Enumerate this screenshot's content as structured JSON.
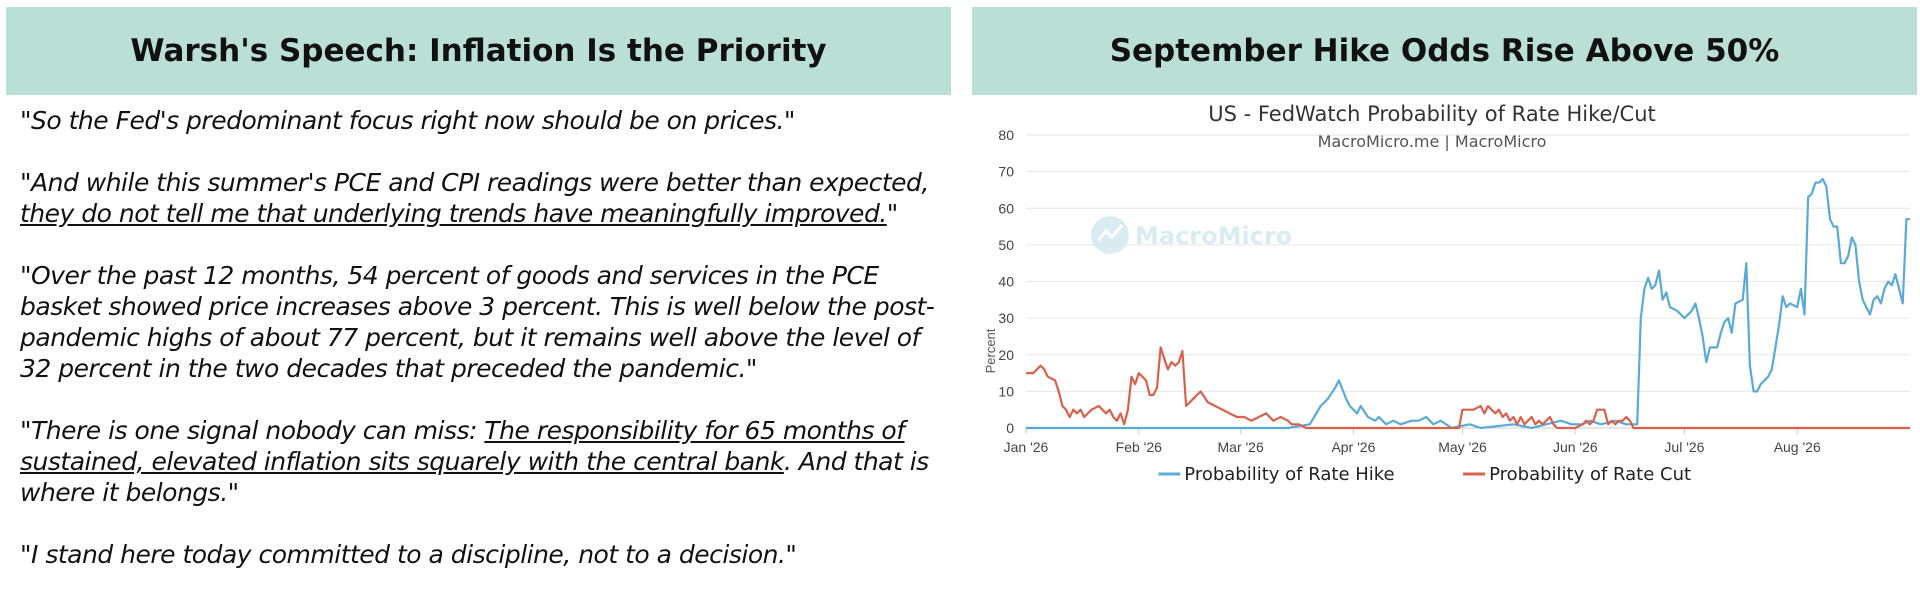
{
  "left": {
    "title": "Warsh's Speech: Inflation Is the Priority",
    "quotes": [
      {
        "parts": [
          {
            "text": "\"So the Fed's predominant focus right now should be on prices.\"",
            "u": false
          }
        ]
      },
      {
        "parts": [
          {
            "text": "\"And while this summer's PCE and CPI readings were better than expected, ",
            "u": false
          },
          {
            "text": "they do not tell me that underlying trends have meaningfully improved.",
            "u": true
          },
          {
            "text": "\"",
            "u": false
          }
        ]
      },
      {
        "parts": [
          {
            "text": "\"Over the past 12 months, 54 percent of goods and services in the PCE basket showed price increases above 3 percent. This is well below the post-pandemic highs of about 77 percent, but it remains well above the level of 32 percent in the two decades that preceded the pandemic.\"",
            "u": false
          }
        ]
      },
      {
        "parts": [
          {
            "text": "\"There is one signal nobody can miss: ",
            "u": false
          },
          {
            "text": "The responsibility for 65 months of sustained, elevated inflation sits squarely with the central bank",
            "u": true
          },
          {
            "text": ". And that is where it belongs.\"",
            "u": false
          }
        ]
      },
      {
        "parts": [
          {
            "text": "\"I stand here today committed to a discipline, not to a decision.\"",
            "u": false
          }
        ]
      }
    ]
  },
  "right": {
    "title": "September Hike Odds Rise Above 50%",
    "watermark": "MacroMicro"
  },
  "colors": {
    "header_bg": "#badfd4",
    "hike": "#5aaad5",
    "cut": "#d9614c",
    "grid": "#e6e6e6"
  },
  "chart_data": {
    "type": "line",
    "title": "US - FedWatch Probability of Rate Hike/Cut",
    "subtitle": "MacroMicro.me | MacroMicro",
    "ylabel": "Percent",
    "ylim": [
      0,
      80
    ],
    "yticks": [
      0,
      10,
      20,
      30,
      40,
      50,
      60,
      70,
      80
    ],
    "xlim": [
      "2026-01-01",
      "2026-09-01"
    ],
    "xticks": [
      {
        "date": "2026-01-01",
        "label": "Jan '26"
      },
      {
        "date": "2026-02-01",
        "label": "Feb '26"
      },
      {
        "date": "2026-03-01",
        "label": "Mar '26"
      },
      {
        "date": "2026-04-01",
        "label": "Apr '26"
      },
      {
        "date": "2026-05-01",
        "label": "May '26"
      },
      {
        "date": "2026-06-01",
        "label": "Jun '26"
      },
      {
        "date": "2026-07-01",
        "label": "Jul '26"
      },
      {
        "date": "2026-08-01",
        "label": "Aug '26"
      }
    ],
    "grid": true,
    "legend_position": "bottom",
    "series": [
      {
        "name": "Probability of Rate Hike",
        "color": "#5aaad5",
        "points": [
          [
            "2026-01-01",
            0
          ],
          [
            "2026-03-14",
            0
          ],
          [
            "2026-03-20",
            1
          ],
          [
            "2026-03-23",
            6
          ],
          [
            "2026-03-25",
            8
          ],
          [
            "2026-03-27",
            11
          ],
          [
            "2026-03-28",
            13
          ],
          [
            "2026-03-30",
            8
          ],
          [
            "2026-03-31",
            6
          ],
          [
            "2026-04-02",
            4
          ],
          [
            "2026-04-03",
            6
          ],
          [
            "2026-04-05",
            3
          ],
          [
            "2026-04-07",
            2
          ],
          [
            "2026-04-08",
            3
          ],
          [
            "2026-04-10",
            1
          ],
          [
            "2026-04-12",
            2
          ],
          [
            "2026-04-14",
            1
          ],
          [
            "2026-04-17",
            2
          ],
          [
            "2026-04-19",
            2
          ],
          [
            "2026-04-21",
            3
          ],
          [
            "2026-04-23",
            1
          ],
          [
            "2026-04-25",
            2
          ],
          [
            "2026-04-28",
            0
          ],
          [
            "2026-05-03",
            1
          ],
          [
            "2026-05-06",
            0
          ],
          [
            "2026-05-15",
            1
          ],
          [
            "2026-05-20",
            0
          ],
          [
            "2026-05-24",
            1
          ],
          [
            "2026-05-28",
            2
          ],
          [
            "2026-05-31",
            1
          ],
          [
            "2026-06-03",
            1
          ],
          [
            "2026-06-05",
            2
          ],
          [
            "2026-06-08",
            1
          ],
          [
            "2026-06-12",
            2
          ],
          [
            "2026-06-15",
            1
          ],
          [
            "2026-06-18",
            1
          ],
          [
            "2026-06-19",
            30
          ],
          [
            "2026-06-20",
            38
          ],
          [
            "2026-06-21",
            41
          ],
          [
            "2026-06-22",
            38
          ],
          [
            "2026-06-23",
            39
          ],
          [
            "2026-06-24",
            43
          ],
          [
            "2026-06-25",
            35
          ],
          [
            "2026-06-26",
            37
          ],
          [
            "2026-06-27",
            33
          ],
          [
            "2026-06-29",
            32
          ],
          [
            "2026-07-01",
            30
          ],
          [
            "2026-07-03",
            32
          ],
          [
            "2026-07-04",
            34
          ],
          [
            "2026-07-05",
            30
          ],
          [
            "2026-07-06",
            25
          ],
          [
            "2026-07-07",
            18
          ],
          [
            "2026-07-08",
            22
          ],
          [
            "2026-07-10",
            22
          ],
          [
            "2026-07-11",
            26
          ],
          [
            "2026-07-12",
            29
          ],
          [
            "2026-07-13",
            30
          ],
          [
            "2026-07-14",
            26
          ],
          [
            "2026-07-15",
            34
          ],
          [
            "2026-07-17",
            35
          ],
          [
            "2026-07-18",
            45
          ],
          [
            "2026-07-19",
            17
          ],
          [
            "2026-07-20",
            10
          ],
          [
            "2026-07-21",
            10
          ],
          [
            "2026-07-22",
            12
          ],
          [
            "2026-07-24",
            14
          ],
          [
            "2026-07-25",
            16
          ],
          [
            "2026-07-27",
            28
          ],
          [
            "2026-07-28",
            36
          ],
          [
            "2026-07-29",
            33
          ],
          [
            "2026-07-30",
            34
          ],
          [
            "2026-08-01",
            33
          ],
          [
            "2026-08-02",
            38
          ],
          [
            "2026-08-03",
            31
          ],
          [
            "2026-08-04",
            63
          ],
          [
            "2026-08-05",
            64
          ],
          [
            "2026-08-06",
            67
          ],
          [
            "2026-08-07",
            67
          ],
          [
            "2026-08-08",
            68
          ],
          [
            "2026-08-09",
            66
          ],
          [
            "2026-08-10",
            57
          ],
          [
            "2026-08-11",
            55
          ],
          [
            "2026-08-12",
            55
          ],
          [
            "2026-08-13",
            45
          ],
          [
            "2026-08-14",
            45
          ],
          [
            "2026-08-15",
            47
          ],
          [
            "2026-08-16",
            52
          ],
          [
            "2026-08-17",
            50
          ],
          [
            "2026-08-18",
            40
          ],
          [
            "2026-08-19",
            35
          ],
          [
            "2026-08-20",
            33
          ],
          [
            "2026-08-21",
            31
          ],
          [
            "2026-08-22",
            35
          ],
          [
            "2026-08-23",
            36
          ],
          [
            "2026-08-24",
            34
          ],
          [
            "2026-08-25",
            38
          ],
          [
            "2026-08-26",
            40
          ],
          [
            "2026-08-27",
            39
          ],
          [
            "2026-08-28",
            42
          ],
          [
            "2026-08-29",
            38
          ],
          [
            "2026-08-30",
            34
          ],
          [
            "2026-08-31",
            57
          ],
          [
            "2026-09-01",
            57
          ]
        ]
      },
      {
        "name": "Probability of Rate Cut",
        "color": "#d9614c",
        "points": [
          [
            "2026-01-01",
            15
          ],
          [
            "2026-01-03",
            15
          ],
          [
            "2026-01-04",
            16
          ],
          [
            "2026-01-05",
            17
          ],
          [
            "2026-01-06",
            16
          ],
          [
            "2026-01-07",
            14
          ],
          [
            "2026-01-09",
            13
          ],
          [
            "2026-01-10",
            10
          ],
          [
            "2026-01-11",
            6
          ],
          [
            "2026-01-12",
            5
          ],
          [
            "2026-01-13",
            3
          ],
          [
            "2026-01-14",
            5
          ],
          [
            "2026-01-15",
            4
          ],
          [
            "2026-01-16",
            5
          ],
          [
            "2026-01-17",
            3
          ],
          [
            "2026-01-18",
            4
          ],
          [
            "2026-01-19",
            5
          ],
          [
            "2026-01-21",
            6
          ],
          [
            "2026-01-22",
            5
          ],
          [
            "2026-01-23",
            4
          ],
          [
            "2026-01-24",
            5
          ],
          [
            "2026-01-25",
            3
          ],
          [
            "2026-01-26",
            2
          ],
          [
            "2026-01-27",
            4
          ],
          [
            "2026-01-28",
            1
          ],
          [
            "2026-01-29",
            5
          ],
          [
            "2026-01-30",
            14
          ],
          [
            "2026-01-31",
            12
          ],
          [
            "2026-02-01",
            15
          ],
          [
            "2026-02-03",
            13
          ],
          [
            "2026-02-04",
            9
          ],
          [
            "2026-02-05",
            9
          ],
          [
            "2026-02-06",
            11
          ],
          [
            "2026-02-07",
            22
          ],
          [
            "2026-02-08",
            19
          ],
          [
            "2026-02-09",
            16
          ],
          [
            "2026-02-10",
            18
          ],
          [
            "2026-02-11",
            17
          ],
          [
            "2026-02-12",
            18
          ],
          [
            "2026-02-13",
            21
          ],
          [
            "2026-02-14",
            6
          ],
          [
            "2026-02-15",
            7
          ],
          [
            "2026-02-16",
            8
          ],
          [
            "2026-02-17",
            9
          ],
          [
            "2026-02-18",
            10
          ],
          [
            "2026-02-20",
            7
          ],
          [
            "2026-02-22",
            6
          ],
          [
            "2026-02-24",
            5
          ],
          [
            "2026-02-26",
            4
          ],
          [
            "2026-02-28",
            3
          ],
          [
            "2026-03-02",
            3
          ],
          [
            "2026-03-04",
            2
          ],
          [
            "2026-03-06",
            3
          ],
          [
            "2026-03-08",
            4
          ],
          [
            "2026-03-10",
            2
          ],
          [
            "2026-03-12",
            3
          ],
          [
            "2026-03-14",
            2
          ],
          [
            "2026-03-15",
            1
          ],
          [
            "2026-03-17",
            1
          ],
          [
            "2026-03-19",
            0
          ],
          [
            "2026-04-30",
            0
          ],
          [
            "2026-05-01",
            5
          ],
          [
            "2026-05-04",
            5
          ],
          [
            "2026-05-06",
            6
          ],
          [
            "2026-05-07",
            4
          ],
          [
            "2026-05-08",
            6
          ],
          [
            "2026-05-09",
            5
          ],
          [
            "2026-05-10",
            4
          ],
          [
            "2026-05-11",
            5
          ],
          [
            "2026-05-12",
            3
          ],
          [
            "2026-05-13",
            4
          ],
          [
            "2026-05-14",
            2
          ],
          [
            "2026-05-15",
            3
          ],
          [
            "2026-05-16",
            1
          ],
          [
            "2026-05-17",
            3
          ],
          [
            "2026-05-18",
            1
          ],
          [
            "2026-05-19",
            2
          ],
          [
            "2026-05-20",
            3
          ],
          [
            "2026-05-21",
            1
          ],
          [
            "2026-05-22",
            2
          ],
          [
            "2026-05-23",
            1
          ],
          [
            "2026-05-24",
            2
          ],
          [
            "2026-05-25",
            3
          ],
          [
            "2026-05-26",
            1
          ],
          [
            "2026-05-27",
            0
          ],
          [
            "2026-06-01",
            0
          ],
          [
            "2026-06-03",
            1
          ],
          [
            "2026-06-04",
            2
          ],
          [
            "2026-06-05",
            1
          ],
          [
            "2026-06-06",
            2
          ],
          [
            "2026-06-07",
            5
          ],
          [
            "2026-06-08",
            5
          ],
          [
            "2026-06-09",
            5
          ],
          [
            "2026-06-10",
            1
          ],
          [
            "2026-06-11",
            2
          ],
          [
            "2026-06-12",
            1
          ],
          [
            "2026-06-13",
            2
          ],
          [
            "2026-06-14",
            2
          ],
          [
            "2026-06-15",
            3
          ],
          [
            "2026-06-16",
            2
          ],
          [
            "2026-06-17",
            0
          ],
          [
            "2026-09-01",
            0
          ]
        ]
      }
    ]
  }
}
